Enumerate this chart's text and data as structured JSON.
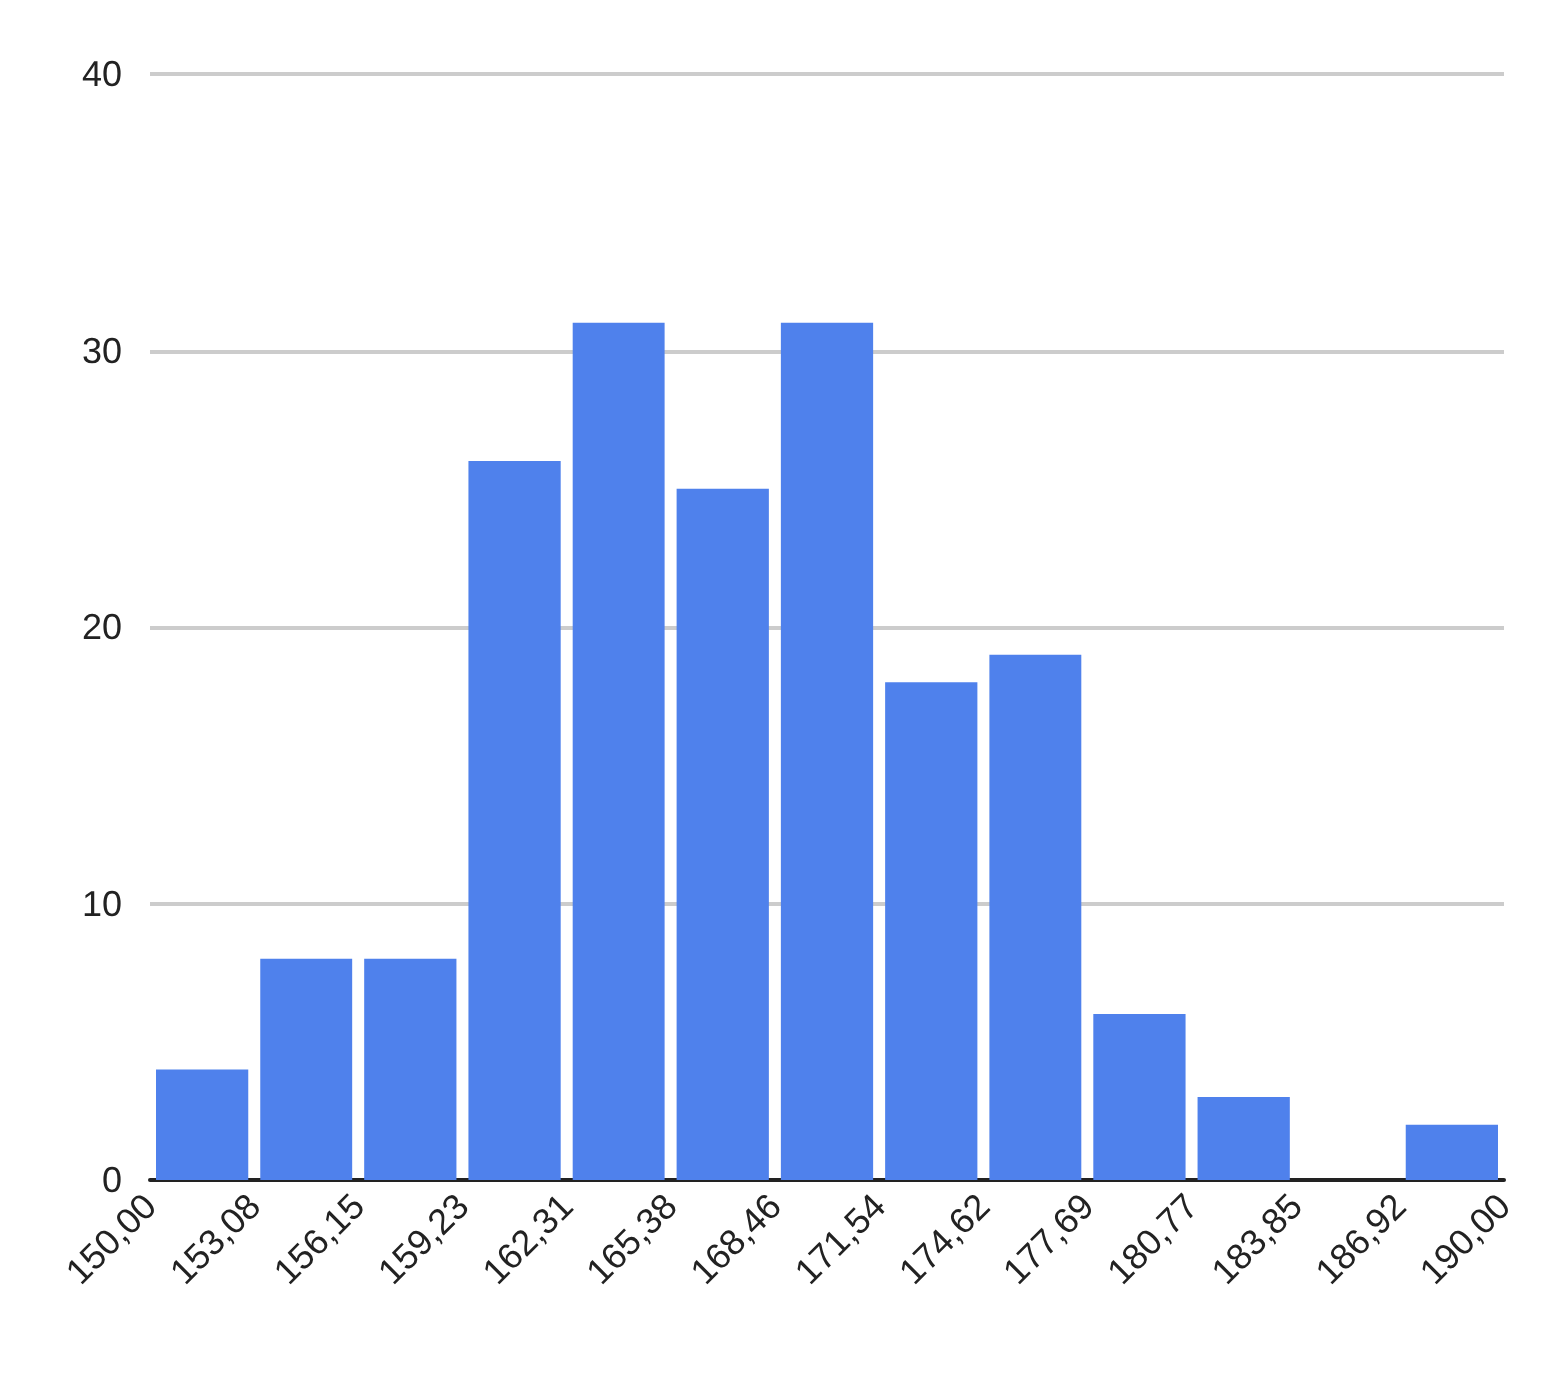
{
  "chart_data": {
    "type": "histogram",
    "color": "#4f81ec",
    "bins": [
      150.0,
      153.08,
      156.15,
      159.23,
      162.31,
      165.38,
      168.46,
      171.54,
      174.62,
      177.69,
      180.77,
      183.85,
      186.92,
      190.0
    ],
    "values": [
      4,
      8,
      8,
      26,
      31,
      25,
      31,
      18,
      19,
      6,
      3,
      0,
      2
    ],
    "xlim": [
      150,
      190
    ],
    "xticks": [
      {
        "value": 150.0,
        "label": "150,00"
      },
      {
        "value": 153.08,
        "label": "153,08"
      },
      {
        "value": 156.15,
        "label": "156,15"
      },
      {
        "value": 159.23,
        "label": "159,23"
      },
      {
        "value": 162.31,
        "label": "162,31"
      },
      {
        "value": 165.38,
        "label": "165,38"
      },
      {
        "value": 168.46,
        "label": "168,46"
      },
      {
        "value": 171.54,
        "label": "171,54"
      },
      {
        "value": 174.62,
        "label": "174,62"
      },
      {
        "value": 177.69,
        "label": "177,69"
      },
      {
        "value": 180.77,
        "label": "180,77"
      },
      {
        "value": 183.85,
        "label": "183,85"
      },
      {
        "value": 186.92,
        "label": "186,92"
      },
      {
        "value": 190.0,
        "label": "190,00"
      }
    ],
    "ylim": [
      0,
      40
    ],
    "yticks": [
      0,
      10,
      20,
      30,
      40
    ],
    "grid": "y"
  }
}
